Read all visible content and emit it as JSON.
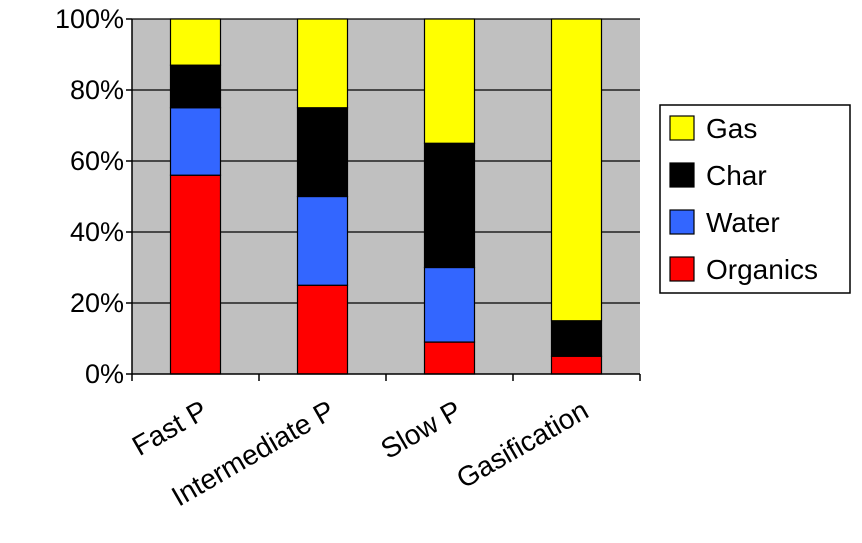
{
  "chart_data": {
    "type": "bar",
    "stacked": true,
    "percent_stacked": true,
    "categories": [
      "Fast P",
      "Intermediate P",
      "Slow P",
      "Gasification"
    ],
    "series": [
      {
        "name": "Organics",
        "color": "#ff0000",
        "values": [
          56,
          25,
          9,
          5
        ]
      },
      {
        "name": "Water",
        "color": "#3366ff",
        "values": [
          19,
          25,
          21,
          0
        ]
      },
      {
        "name": "Char",
        "color": "#000000",
        "values": [
          12,
          25,
          35,
          10
        ]
      },
      {
        "name": "Gas",
        "color": "#ffff00",
        "values": [
          13,
          25,
          35,
          85
        ]
      }
    ],
    "y_ticks": [
      "0%",
      "20%",
      "40%",
      "60%",
      "80%",
      "100%"
    ],
    "ylim": [
      0,
      100
    ],
    "grid": true,
    "plot_background": "#c0c0c0",
    "legend_position": "right",
    "legend_order": [
      "Gas",
      "Char",
      "Water",
      "Organics"
    ]
  }
}
